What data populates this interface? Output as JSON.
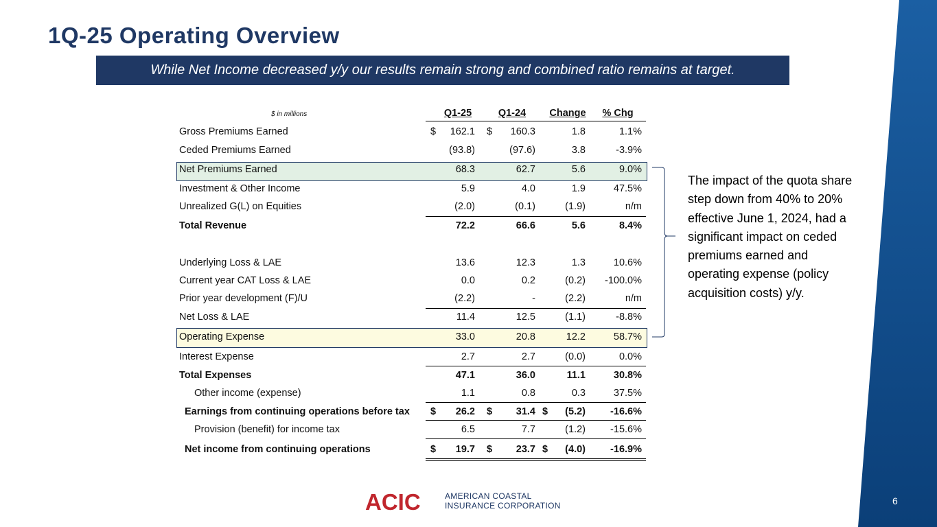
{
  "title": "1Q-25 Operating Overview",
  "subtitle": "While Net Income decreased y/y our results remain strong and combined ratio remains at target.",
  "table": {
    "units": "$ in millions",
    "headers": [
      "Q1-25",
      "Q1-24",
      "Change",
      "% Chg"
    ],
    "rows": [
      {
        "label": "Gross Premiums Earned",
        "d1": "$",
        "q125": "162.1",
        "d2": "$",
        "q124": "160.3",
        "d3": "",
        "change": "1.8",
        "pct": "1.1%"
      },
      {
        "label": "Ceded Premiums Earned",
        "d1": "",
        "q125": "(93.8)",
        "d2": "",
        "q124": "(97.6)",
        "d3": "",
        "change": "3.8",
        "pct": "-3.9%"
      },
      {
        "label": "Net Premiums Earned",
        "d1": "",
        "q125": "68.3",
        "d2": "",
        "q124": "62.7",
        "d3": "",
        "change": "5.6",
        "pct": "9.0%"
      },
      {
        "label": "Investment & Other Income",
        "d1": "",
        "q125": "5.9",
        "d2": "",
        "q124": "4.0",
        "d3": "",
        "change": "1.9",
        "pct": "47.5%"
      },
      {
        "label": "Unrealized G(L) on Equities",
        "d1": "",
        "q125": "(2.0)",
        "d2": "",
        "q124": "(0.1)",
        "d3": "",
        "change": "(1.9)",
        "pct": "n/m"
      },
      {
        "label": "Total Revenue",
        "d1": "",
        "q125": "72.2",
        "d2": "",
        "q124": "66.6",
        "d3": "",
        "change": "5.6",
        "pct": "8.4%"
      },
      {
        "label": "Underlying Loss & LAE",
        "d1": "",
        "q125": "13.6",
        "d2": "",
        "q124": "12.3",
        "d3": "",
        "change": "1.3",
        "pct": "10.6%"
      },
      {
        "label": "Current year CAT Loss & LAE",
        "d1": "",
        "q125": "0.0",
        "d2": "",
        "q124": "0.2",
        "d3": "",
        "change": "(0.2)",
        "pct": "-100.0%"
      },
      {
        "label": "Prior year development (F)/U",
        "d1": "",
        "q125": "(2.2)",
        "d2": "",
        "q124": "-",
        "d3": "",
        "change": "(2.2)",
        "pct": "n/m"
      },
      {
        "label": "Net Loss & LAE",
        "d1": "",
        "q125": "11.4",
        "d2": "",
        "q124": "12.5",
        "d3": "",
        "change": "(1.1)",
        "pct": "-8.8%"
      },
      {
        "label": "Operating Expense",
        "d1": "",
        "q125": "33.0",
        "d2": "",
        "q124": "20.8",
        "d3": "",
        "change": "12.2",
        "pct": "58.7%"
      },
      {
        "label": "Interest Expense",
        "d1": "",
        "q125": "2.7",
        "d2": "",
        "q124": "2.7",
        "d3": "",
        "change": "(0.0)",
        "pct": "0.0%"
      },
      {
        "label": "Total Expenses",
        "d1": "",
        "q125": "47.1",
        "d2": "",
        "q124": "36.0",
        "d3": "",
        "change": "11.1",
        "pct": "30.8%"
      },
      {
        "label": "Other income (expense)",
        "d1": "",
        "q125": "1.1",
        "d2": "",
        "q124": "0.8",
        "d3": "",
        "change": "0.3",
        "pct": "37.5%"
      },
      {
        "label": "Earnings from continuing operations before tax",
        "d1": "$",
        "q125": "26.2",
        "d2": "$",
        "q124": "31.4",
        "d3": "$",
        "change": "(5.2)",
        "pct": "-16.6%"
      },
      {
        "label": "Provision (benefit) for income tax",
        "d1": "",
        "q125": "6.5",
        "d2": "",
        "q124": "7.7",
        "d3": "",
        "change": "(1.2)",
        "pct": "-15.6%"
      },
      {
        "label": "Net income from continuing operations",
        "d1": "$",
        "q125": "19.7",
        "d2": "$",
        "q124": "23.7",
        "d3": "$",
        "change": "(4.0)",
        "pct": "-16.9%"
      }
    ]
  },
  "note": "The impact of the quota share step down from 40% to 20% effective June 1, 2024, had a significant impact on ceded premiums earned and operating expense (policy acquisition costs) y/y.",
  "logo": {
    "mark": "ACIC",
    "line1": "AMERICAN COASTAL",
    "line2": "INSURANCE CORPORATION"
  },
  "page_number": "6",
  "colors": {
    "navy": "#1f3864",
    "band": "#0f4c8a",
    "green_highlight": "#e2f0e4",
    "yellow_highlight": "#fdfbe0",
    "logo_red": "#c0262d"
  }
}
